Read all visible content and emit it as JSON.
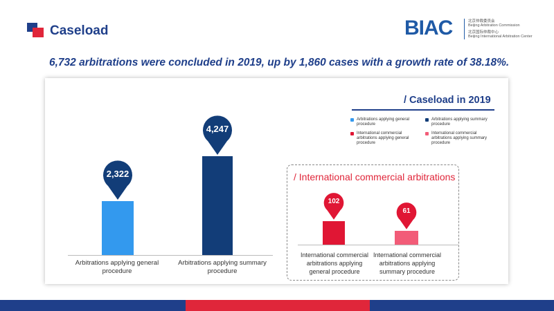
{
  "page": {
    "title": "Caseload",
    "headline": "6,732 arbitrations were concluded in 2019, up by 1,860 cases with a growth rate of 38.18%."
  },
  "brand": {
    "mark": "BIAC",
    "line1": "北京仲裁委员会",
    "line2": "Beijing Arbitration Commission",
    "line3": "北京国际仲裁中心",
    "line4": "Beijing International Arbitration Center"
  },
  "colors": {
    "navy": "#1f3f8a",
    "light_blue": "#3399ee",
    "dark_navy": "#123d78",
    "red": "#e01634",
    "pink": "#f25c78"
  },
  "chart_data": [
    {
      "type": "bar",
      "title": "/ Caseload in 2019",
      "categories": [
        "Arbitrations applying general procedure",
        "Arbitrations applying summary procedure"
      ],
      "values": [
        2322,
        4247
      ],
      "value_labels": [
        "2,322",
        "4,247"
      ],
      "colors": [
        "#3399ee",
        "#123d78"
      ],
      "legend_position": "top-right"
    },
    {
      "type": "bar",
      "title": "/ International commercial arbitrations",
      "categories": [
        "International commercial arbitrations applying general procedure",
        "International commercial arbitrations applying summary procedure"
      ],
      "values": [
        102,
        61
      ],
      "value_labels": [
        "102",
        "61"
      ],
      "colors": [
        "#e01634",
        "#f25c78"
      ]
    }
  ],
  "legend": [
    {
      "label": "Arbitrations applying general procedure",
      "color": "#3399ee"
    },
    {
      "label": "Arbitrations applying summary procedure",
      "color": "#123d78"
    },
    {
      "label": "International commercial arbitrations applying general procedure",
      "color": "#e01634"
    },
    {
      "label": "International commercial arbitrations applying summary procedure",
      "color": "#f25c78"
    }
  ],
  "footer_colors": [
    "#1f3f8a",
    "#e0263a",
    "#1f3f8a"
  ]
}
